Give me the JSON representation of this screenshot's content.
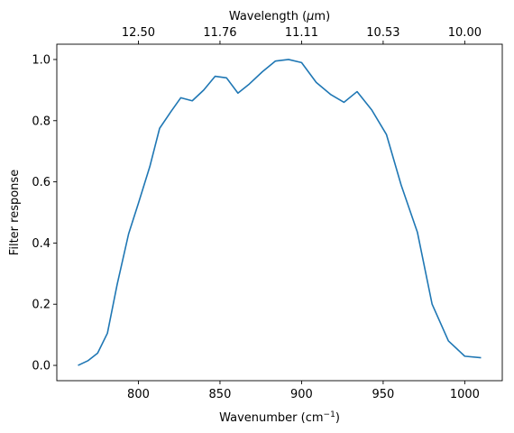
{
  "chart_data": {
    "type": "line",
    "xlabel": "Wavenumber (cm",
    "xlabel_sup": "−1",
    "xlabel_end": ")",
    "ylabel": "Filter response",
    "top_xlabel": "Wavelength (",
    "top_xlabel_mu": "μ",
    "top_xlabel_end": "m)",
    "xlim": [
      750,
      1023
    ],
    "ylim": [
      -0.05,
      1.05
    ],
    "x_ticks": [
      800,
      850,
      900,
      950,
      1000
    ],
    "x_tick_labels": [
      "800",
      "850",
      "900",
      "950",
      "1000"
    ],
    "y_ticks": [
      0.0,
      0.2,
      0.4,
      0.6,
      0.8,
      1.0
    ],
    "y_tick_labels": [
      "0.0",
      "0.2",
      "0.4",
      "0.6",
      "0.8",
      "1.0"
    ],
    "top_ticks": [
      800,
      850,
      900,
      950,
      1000
    ],
    "top_tick_labels": [
      "12.50",
      "11.76",
      "11.11",
      "10.53",
      "10.00"
    ],
    "grid": false,
    "series": [
      {
        "color": "#1f77b4",
        "x": [
          763,
          769,
          775,
          781,
          787,
          794,
          800,
          807,
          813,
          820,
          826,
          833,
          840,
          847,
          854,
          861,
          868,
          876,
          884,
          892,
          900,
          909,
          918,
          926,
          934,
          943,
          952,
          961,
          971,
          980,
          990,
          1000,
          1010
        ],
        "y": [
          0.0,
          0.015,
          0.04,
          0.105,
          0.265,
          0.43,
          0.53,
          0.65,
          0.775,
          0.83,
          0.875,
          0.865,
          0.9,
          0.945,
          0.94,
          0.89,
          0.92,
          0.96,
          0.995,
          1.0,
          0.99,
          0.925,
          0.885,
          0.86,
          0.895,
          0.835,
          0.755,
          0.59,
          0.435,
          0.2,
          0.08,
          0.03,
          0.025
        ]
      }
    ]
  }
}
